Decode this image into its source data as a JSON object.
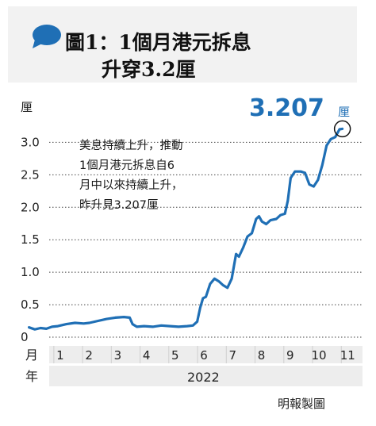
{
  "title": {
    "line1": "圖1：1個月港元拆息",
    "line2": "升穿3.2厘"
  },
  "annotation": {
    "value": "3.207",
    "unit": "厘",
    "callout_lines": [
      "美息持續上升，推動",
      "1個月港元拆息自6",
      "月中以來持續上升，",
      "昨升見3.207厘"
    ]
  },
  "credit": "明報製圖",
  "colors": {
    "line": "#1f6fb5",
    "bubble": "#1f6fb5",
    "value": "#1f6fb5",
    "grid": "#444444"
  },
  "chart_data": {
    "type": "line",
    "ylabel": "厘",
    "xlabel_prefix": "月",
    "year_label_prefix": "年",
    "year": "2022",
    "ylim": [
      0,
      3.2
    ],
    "xlim": [
      0.7,
      11.6
    ],
    "yticks": [
      {
        "value": 0,
        "label": "0"
      },
      {
        "value": 0.5,
        "label": "0.5"
      },
      {
        "value": 1.0,
        "label": "1.0"
      },
      {
        "value": 1.5,
        "label": "1.5"
      },
      {
        "value": 2.0,
        "label": "2.0"
      },
      {
        "value": 2.5,
        "label": "2.5"
      },
      {
        "value": 3.0,
        "label": "3.0"
      }
    ],
    "xticks": [
      {
        "value": 1,
        "label": "1"
      },
      {
        "value": 2,
        "label": "2"
      },
      {
        "value": 3,
        "label": "3"
      },
      {
        "value": 4,
        "label": "4"
      },
      {
        "value": 5,
        "label": "5"
      },
      {
        "value": 6,
        "label": "6"
      },
      {
        "value": 7,
        "label": "7"
      },
      {
        "value": 8,
        "label": "8"
      },
      {
        "value": 9,
        "label": "9"
      },
      {
        "value": 10,
        "label": "10"
      },
      {
        "value": 11,
        "label": "11"
      }
    ],
    "series": [
      {
        "points": [
          [
            0.0,
            0.15
          ],
          [
            0.2,
            0.12
          ],
          [
            0.4,
            0.14
          ],
          [
            0.6,
            0.13
          ],
          [
            0.8,
            0.16
          ],
          [
            1.0,
            0.17
          ],
          [
            1.3,
            0.2
          ],
          [
            1.6,
            0.22
          ],
          [
            1.9,
            0.21
          ],
          [
            2.1,
            0.22
          ],
          [
            2.4,
            0.25
          ],
          [
            2.7,
            0.28
          ],
          [
            3.0,
            0.3
          ],
          [
            3.3,
            0.31
          ],
          [
            3.5,
            0.3
          ],
          [
            3.6,
            0.2
          ],
          [
            3.75,
            0.16
          ],
          [
            4.0,
            0.17
          ],
          [
            4.3,
            0.16
          ],
          [
            4.6,
            0.18
          ],
          [
            4.9,
            0.17
          ],
          [
            5.2,
            0.16
          ],
          [
            5.5,
            0.17
          ],
          [
            5.7,
            0.18
          ],
          [
            5.85,
            0.24
          ],
          [
            5.95,
            0.45
          ],
          [
            6.05,
            0.6
          ],
          [
            6.15,
            0.62
          ],
          [
            6.3,
            0.82
          ],
          [
            6.45,
            0.9
          ],
          [
            6.6,
            0.86
          ],
          [
            6.75,
            0.8
          ],
          [
            6.9,
            0.76
          ],
          [
            7.05,
            0.9
          ],
          [
            7.2,
            1.28
          ],
          [
            7.3,
            1.24
          ],
          [
            7.45,
            1.38
          ],
          [
            7.6,
            1.55
          ],
          [
            7.75,
            1.6
          ],
          [
            7.9,
            1.82
          ],
          [
            8.0,
            1.86
          ],
          [
            8.1,
            1.78
          ],
          [
            8.25,
            1.74
          ],
          [
            8.4,
            1.8
          ],
          [
            8.6,
            1.82
          ],
          [
            8.75,
            1.88
          ],
          [
            8.9,
            1.9
          ],
          [
            9.0,
            2.1
          ],
          [
            9.1,
            2.45
          ],
          [
            9.25,
            2.55
          ],
          [
            9.45,
            2.55
          ],
          [
            9.6,
            2.53
          ],
          [
            9.75,
            2.35
          ],
          [
            9.9,
            2.32
          ],
          [
            10.05,
            2.42
          ],
          [
            10.2,
            2.65
          ],
          [
            10.35,
            2.95
          ],
          [
            10.5,
            3.05
          ],
          [
            10.65,
            3.08
          ],
          [
            10.8,
            3.2
          ],
          [
            10.9,
            3.207
          ]
        ]
      }
    ],
    "highlight": {
      "x": 10.9,
      "y": 3.207
    }
  }
}
